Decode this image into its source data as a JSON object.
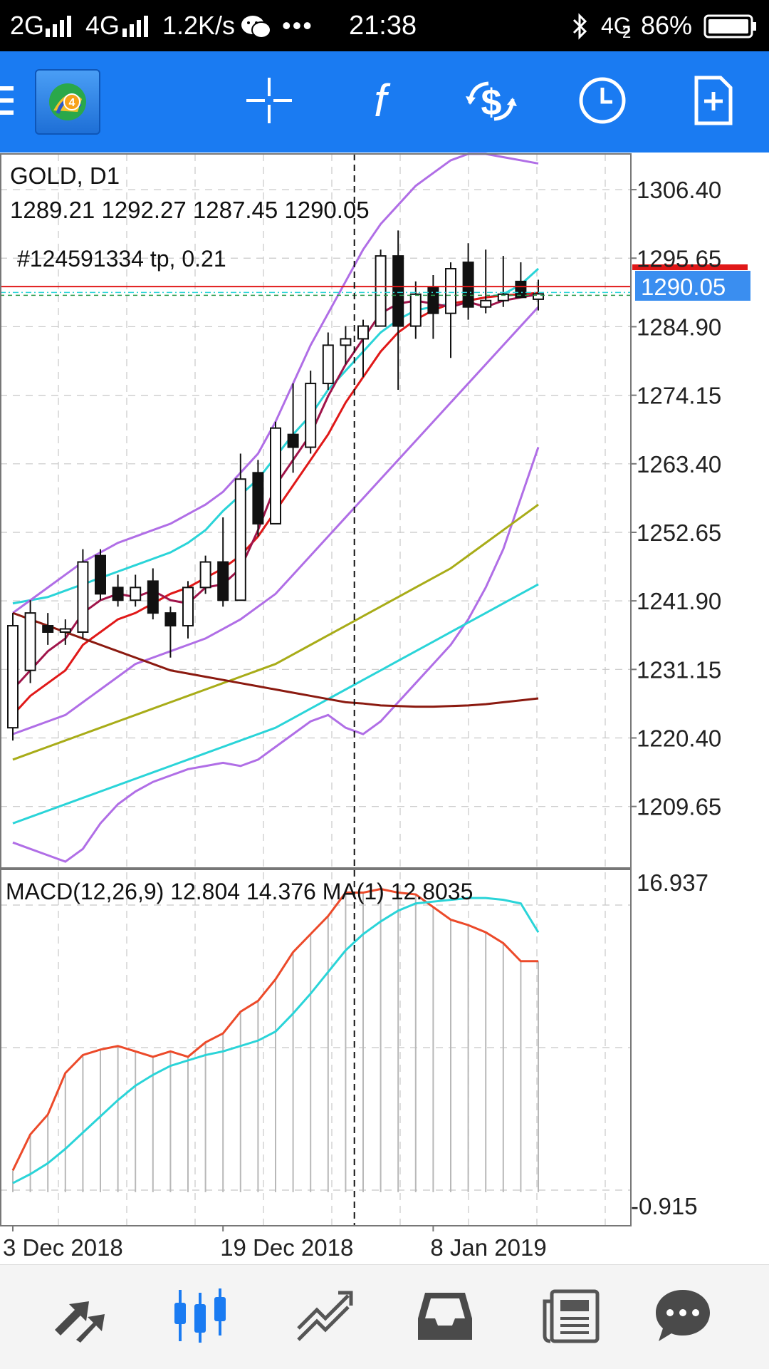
{
  "status_bar": {
    "network_1": "2G",
    "network_2": "4G",
    "speed": "1.2K/s",
    "dots": "•••",
    "time": "21:38",
    "network_3": "4G",
    "sim": "2",
    "battery": "86%"
  },
  "toolbar": {
    "icons": [
      "menu-icon",
      "metatrader-logo-icon",
      "crosshair-icon",
      "indicators-icon",
      "symbols-icon",
      "period-clock-icon",
      "new-order-icon"
    ],
    "logo_digit": "4"
  },
  "chart": {
    "symbol_title": "GOLD, D1",
    "ohlc": "1289.21 1292.27 1287.45 1290.05",
    "order_label": "#124591334 tp, 0.21",
    "current_price_label": "1290.05",
    "price_axis": [
      "1306.40",
      "1295.65",
      "1284.90",
      "1274.15",
      "1263.40",
      "1252.65",
      "1241.90",
      "1231.15",
      "1220.40",
      "1209.65"
    ],
    "macd_label": "MACD(12,26,9) 12.804 14.376 MA(1) 12.8035",
    "macd_axis": [
      "16.937",
      "-0.915"
    ],
    "date_axis": [
      "3 Dec 2018",
      "19 Dec 2018",
      "8 Jan 2019"
    ],
    "colors": {
      "bollinger": "#b06ee6",
      "ma_cyan": "#2ad4d8",
      "ma_red": "#e01818",
      "ma_maroon": "#a0144a",
      "ma_olive": "#a8ac18",
      "ma_darkred": "#8b1a10",
      "macd_main": "#ec4a2a",
      "macd_signal": "#2ad4d8",
      "price_tag": "#3a8ef0"
    }
  },
  "chart_data": {
    "type": "candlestick",
    "symbol": "GOLD, D1",
    "ylim": [
      1200,
      1312
    ],
    "candles": [
      {
        "o": 1222,
        "h": 1240,
        "l": 1220,
        "c": 1238
      },
      {
        "o": 1231,
        "h": 1242,
        "l": 1229,
        "c": 1240
      },
      {
        "o": 1238,
        "h": 1240,
        "l": 1235,
        "c": 1237
      },
      {
        "o": 1237,
        "h": 1239,
        "l": 1235,
        "c": 1237.5
      },
      {
        "o": 1237,
        "h": 1250,
        "l": 1236,
        "c": 1248
      },
      {
        "o": 1249,
        "h": 1250,
        "l": 1242,
        "c": 1243
      },
      {
        "o": 1244,
        "h": 1246,
        "l": 1241,
        "c": 1242
      },
      {
        "o": 1242,
        "h": 1246,
        "l": 1241,
        "c": 1244
      },
      {
        "o": 1245,
        "h": 1247,
        "l": 1239,
        "c": 1240
      },
      {
        "o": 1240,
        "h": 1241,
        "l": 1233,
        "c": 1238
      },
      {
        "o": 1238,
        "h": 1245,
        "l": 1236,
        "c": 1244
      },
      {
        "o": 1244,
        "h": 1249,
        "l": 1243,
        "c": 1248
      },
      {
        "o": 1248,
        "h": 1255,
        "l": 1241,
        "c": 1242
      },
      {
        "o": 1242,
        "h": 1265,
        "l": 1242,
        "c": 1261
      },
      {
        "o": 1262,
        "h": 1264,
        "l": 1252,
        "c": 1254
      },
      {
        "o": 1254,
        "h": 1270,
        "l": 1254,
        "c": 1269
      },
      {
        "o": 1268,
        "h": 1276,
        "l": 1262,
        "c": 1266
      },
      {
        "o": 1266,
        "h": 1278,
        "l": 1265,
        "c": 1276
      },
      {
        "o": 1276,
        "h": 1284,
        "l": 1275,
        "c": 1282
      },
      {
        "o": 1282,
        "h": 1285,
        "l": 1279,
        "c": 1283
      },
      {
        "o": 1283,
        "h": 1286,
        "l": 1277,
        "c": 1285
      },
      {
        "o": 1285,
        "h": 1297,
        "l": 1285,
        "c": 1296
      },
      {
        "o": 1296,
        "h": 1300,
        "l": 1275,
        "c": 1285
      },
      {
        "o": 1285,
        "h": 1292,
        "l": 1283,
        "c": 1290
      },
      {
        "o": 1291,
        "h": 1293,
        "l": 1283,
        "c": 1287
      },
      {
        "o": 1287,
        "h": 1295,
        "l": 1280,
        "c": 1294
      },
      {
        "o": 1295,
        "h": 1298,
        "l": 1286,
        "c": 1288
      },
      {
        "o": 1288,
        "h": 1297,
        "l": 1287,
        "c": 1289
      },
      {
        "o": 1289,
        "h": 1296,
        "l": 1288,
        "c": 1290
      },
      {
        "o": 1292,
        "h": 1295,
        "l": 1290,
        "c": 1289.5
      },
      {
        "o": 1289.21,
        "h": 1292.27,
        "l": 1287.45,
        "c": 1290.05
      }
    ],
    "overlays": [
      {
        "name": "ma_cyan",
        "color": "#2ad4d8",
        "values": [
          1241.5,
          1242,
          1242.5,
          1243.5,
          1244.5,
          1245.5,
          1246.5,
          1247.5,
          1248.5,
          1249.5,
          1251,
          1253,
          1256,
          1258.5,
          1261,
          1264.5,
          1268,
          1271,
          1275,
          1278,
          1281,
          1284,
          1286,
          1287.5,
          1288,
          1288.5,
          1289,
          1289.5,
          1290,
          1291.5,
          1294
        ]
      },
      {
        "name": "ma_red",
        "color": "#e01818",
        "values": [
          1224,
          1227,
          1229,
          1231,
          1235,
          1237,
          1239,
          1240,
          1241.5,
          1243,
          1244,
          1245.5,
          1247,
          1249,
          1252,
          1256,
          1260,
          1264,
          1268,
          1273,
          1277,
          1281,
          1284,
          1286,
          1287.5,
          1288.5,
          1289,
          1289.5,
          1289.8,
          1290,
          1290.2
        ]
      },
      {
        "name": "ma_maroon",
        "color": "#a0144a",
        "values": [
          1228,
          1231,
          1234,
          1236,
          1240,
          1242,
          1243,
          1242.5,
          1243.5,
          1242,
          1241.5,
          1244,
          1244.5,
          1247,
          1253,
          1260,
          1264,
          1268,
          1274,
          1279,
          1283,
          1287,
          1288.5,
          1289,
          1288.5,
          1288,
          1288.8,
          1288,
          1289,
          1289.5,
          1290
        ]
      },
      {
        "name": "bb_upper",
        "color": "#b06ee6",
        "values": [
          1240,
          1242,
          1244,
          1246,
          1248,
          1249.5,
          1251,
          1252,
          1253,
          1254,
          1255.5,
          1257,
          1259,
          1262,
          1265,
          1270,
          1276,
          1282,
          1287,
          1292,
          1297,
          1301,
          1304,
          1307,
          1309,
          1311,
          1312,
          1312,
          1311.5,
          1311,
          1310.5
        ]
      },
      {
        "name": "bb_lower",
        "color": "#b06ee6",
        "values": [
          1221,
          1222,
          1223,
          1224,
          1226,
          1228,
          1230,
          1232,
          1233,
          1234,
          1235,
          1236,
          1237.5,
          1239,
          1241,
          1243,
          1246,
          1249,
          1252,
          1255,
          1258,
          1261,
          1264,
          1267,
          1270,
          1273,
          1276,
          1279,
          1282,
          1285,
          1288
        ]
      },
      {
        "name": "bb_wide_lower",
        "color": "#b06ee6",
        "values": [
          1204,
          1203,
          1202,
          1201,
          1203,
          1207,
          1210,
          1212,
          1213.5,
          1214.5,
          1215.5,
          1216,
          1216.5,
          1216,
          1217,
          1219,
          1221,
          1223,
          1224,
          1222,
          1221,
          1223,
          1226,
          1229,
          1232,
          1235,
          1239,
          1244,
          1250,
          1258,
          1266
        ]
      },
      {
        "name": "ma_olive",
        "color": "#a8ac18",
        "values": [
          1217,
          1218,
          1219,
          1220,
          1221,
          1222,
          1223,
          1224,
          1225,
          1226,
          1227,
          1228,
          1229,
          1230,
          1231,
          1232,
          1233.5,
          1235,
          1236.5,
          1238,
          1239.5,
          1241,
          1242.5,
          1244,
          1245.5,
          1247,
          1249,
          1251,
          1253,
          1255,
          1257
        ]
      },
      {
        "name": "ma_cyan_slow",
        "color": "#2ad4d8",
        "values": [
          1207,
          1208,
          1209,
          1210,
          1211,
          1212,
          1213,
          1214,
          1215,
          1216,
          1217,
          1218,
          1219,
          1220,
          1221,
          1222,
          1223.5,
          1225,
          1226.5,
          1228,
          1229.5,
          1231,
          1232.5,
          1234,
          1235.5,
          1237,
          1238.5,
          1240,
          1241.5,
          1243,
          1244.5
        ]
      },
      {
        "name": "ma_darkred",
        "color": "#8b1a10",
        "values": [
          1240,
          1239,
          1238,
          1237,
          1236,
          1235,
          1234,
          1233,
          1232,
          1231,
          1230.5,
          1230,
          1229.5,
          1229,
          1228.5,
          1228,
          1227.5,
          1227,
          1226.5,
          1226,
          1225.8,
          1225.5,
          1225.4,
          1225.3,
          1225.3,
          1225.4,
          1225.5,
          1225.7,
          1226,
          1226.3,
          1226.6
        ]
      }
    ],
    "macd": {
      "ylim": [
        -0.915,
        16.937
      ],
      "main": [
        1.2,
        3.2,
        4.3,
        6.6,
        7.6,
        7.9,
        8.1,
        7.8,
        7.5,
        7.8,
        7.5,
        8.3,
        8.8,
        10.0,
        10.6,
        11.8,
        13.3,
        14.3,
        15.3,
        16.6,
        16.6,
        16.8,
        16.6,
        16.5,
        15.8,
        15.1,
        14.8,
        14.4,
        13.8,
        12.8,
        12.8
      ],
      "signal": [
        0.5,
        1.0,
        1.6,
        2.4,
        3.3,
        4.2,
        5.1,
        5.9,
        6.5,
        7.0,
        7.3,
        7.6,
        7.8,
        8.1,
        8.4,
        8.9,
        9.9,
        11.0,
        12.2,
        13.4,
        14.3,
        15.0,
        15.6,
        16.0,
        16.1,
        16.2,
        16.3,
        16.3,
        16.2,
        16.0,
        14.4
      ]
    },
    "x_labels": [
      "3 Dec 2018",
      "19 Dec 2018",
      "8 Jan 2019"
    ],
    "x_label_positions": [
      0,
      12,
      24
    ],
    "crosshair_index": 19.5,
    "order_level": 1291.2,
    "current_price": 1290.05
  }
}
